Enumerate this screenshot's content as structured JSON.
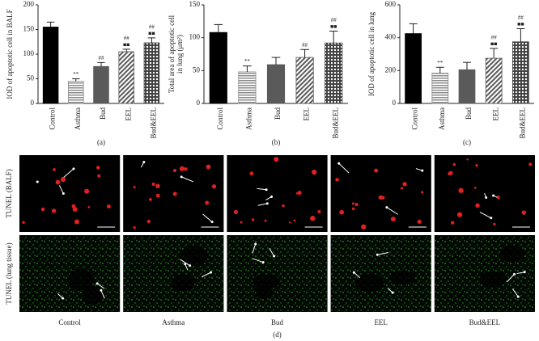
{
  "chart_data": [
    {
      "type": "bar",
      "ylabel": [
        "IOD of apoptotic cell in BALF"
      ],
      "panel_label": "(a)",
      "categories": [
        "Control",
        "Asthma",
        "Bud",
        "EEL",
        "Bud&EEL"
      ],
      "values": [
        155,
        45,
        75,
        105,
        123
      ],
      "errors": [
        10,
        5,
        8,
        5,
        10
      ],
      "annotations": [
        null,
        [
          "**"
        ],
        [
          "##"
        ],
        [
          "##",
          "■■"
        ],
        [
          "##",
          "■■"
        ]
      ],
      "colors": [
        "#000000",
        "#8c8c8c",
        "#5a5a5a",
        "#5a5a5a",
        "#444444"
      ],
      "ylim": [
        0,
        200
      ],
      "yticks": [
        0,
        50,
        100,
        150,
        200
      ]
    },
    {
      "type": "bar",
      "ylabel": [
        "Total area of apoptotic cell",
        "in lung (μm²)"
      ],
      "panel_label": "(b)",
      "categories": [
        "Control",
        "Asthma",
        "Bud",
        "EEL",
        "Bud&EEL"
      ],
      "values": [
        108,
        48,
        59,
        70,
        92
      ],
      "errors": [
        12,
        9,
        11,
        12,
        18
      ],
      "annotations": [
        null,
        [
          "**"
        ],
        null,
        [
          "##"
        ],
        [
          "##",
          "■■"
        ]
      ],
      "colors": [
        "#000000",
        "#8c8c8c",
        "#5a5a5a",
        "#5a5a5a",
        "#444444"
      ],
      "ylim": [
        0,
        150
      ],
      "yticks": [
        0,
        50,
        100,
        150
      ]
    },
    {
      "type": "bar",
      "ylabel": [
        "IOD of apoptotic cell in lung"
      ],
      "panel_label": "(c)",
      "categories": [
        "Control",
        "Asthma",
        "Bud",
        "EEL",
        "Bud&EEL"
      ],
      "values": [
        425,
        185,
        205,
        275,
        375
      ],
      "errors": [
        60,
        35,
        45,
        60,
        80
      ],
      "annotations": [
        null,
        [
          "**"
        ],
        null,
        [
          "##",
          "■■"
        ],
        [
          "##",
          "■■"
        ]
      ],
      "colors": [
        "#000000",
        "#8c8c8c",
        "#5a5a5a",
        "#5a5a5a",
        "#444444"
      ],
      "ylim": [
        0,
        600
      ],
      "yticks": [
        0,
        200,
        400,
        600
      ]
    }
  ],
  "micrographs": {
    "panel_label": "(d)",
    "row_labels": [
      "TUNEL (BALF)",
      "TUNEL (lung tissue)"
    ],
    "column_labels": [
      "Control",
      "Asthma",
      "Bud",
      "EEL",
      "Bud&EEL"
    ]
  }
}
